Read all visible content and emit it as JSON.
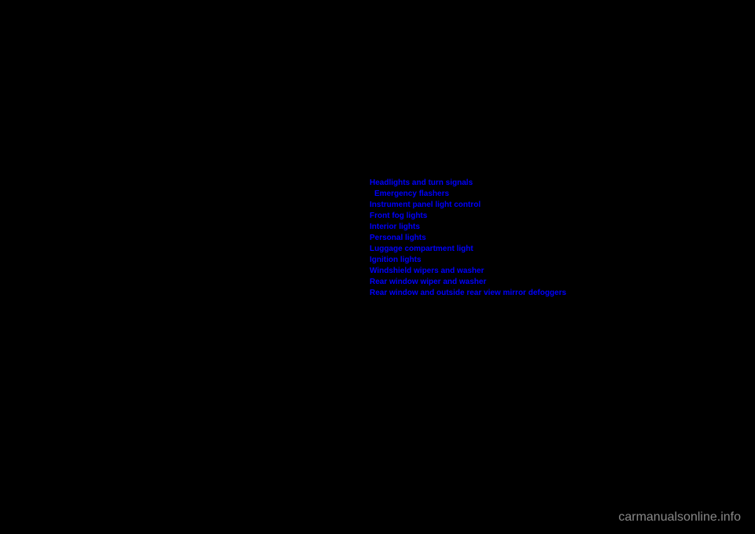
{
  "links": [
    {
      "label": "Headlights and turn signals",
      "indented": false
    },
    {
      "label": "Emergency flashers",
      "indented": true
    },
    {
      "label": "Instrument panel light control",
      "indented": false
    },
    {
      "label": "Front fog lights",
      "indented": false
    },
    {
      "label": "Interior lights",
      "indented": false
    },
    {
      "label": "Personal lights",
      "indented": false
    },
    {
      "label": "Luggage compartment light",
      "indented": false
    },
    {
      "label": "Ignition lights",
      "indented": false
    },
    {
      "label": "Windshield wipers and washer",
      "indented": false
    },
    {
      "label": "Rear window wiper and washer",
      "indented": false
    },
    {
      "label": "Rear window and outside rear view mirror defoggers",
      "indented": false
    }
  ],
  "watermark": "carmanualsonline.info",
  "colors": {
    "background": "#000000",
    "link": "#0000ff",
    "watermark": "#888888"
  }
}
